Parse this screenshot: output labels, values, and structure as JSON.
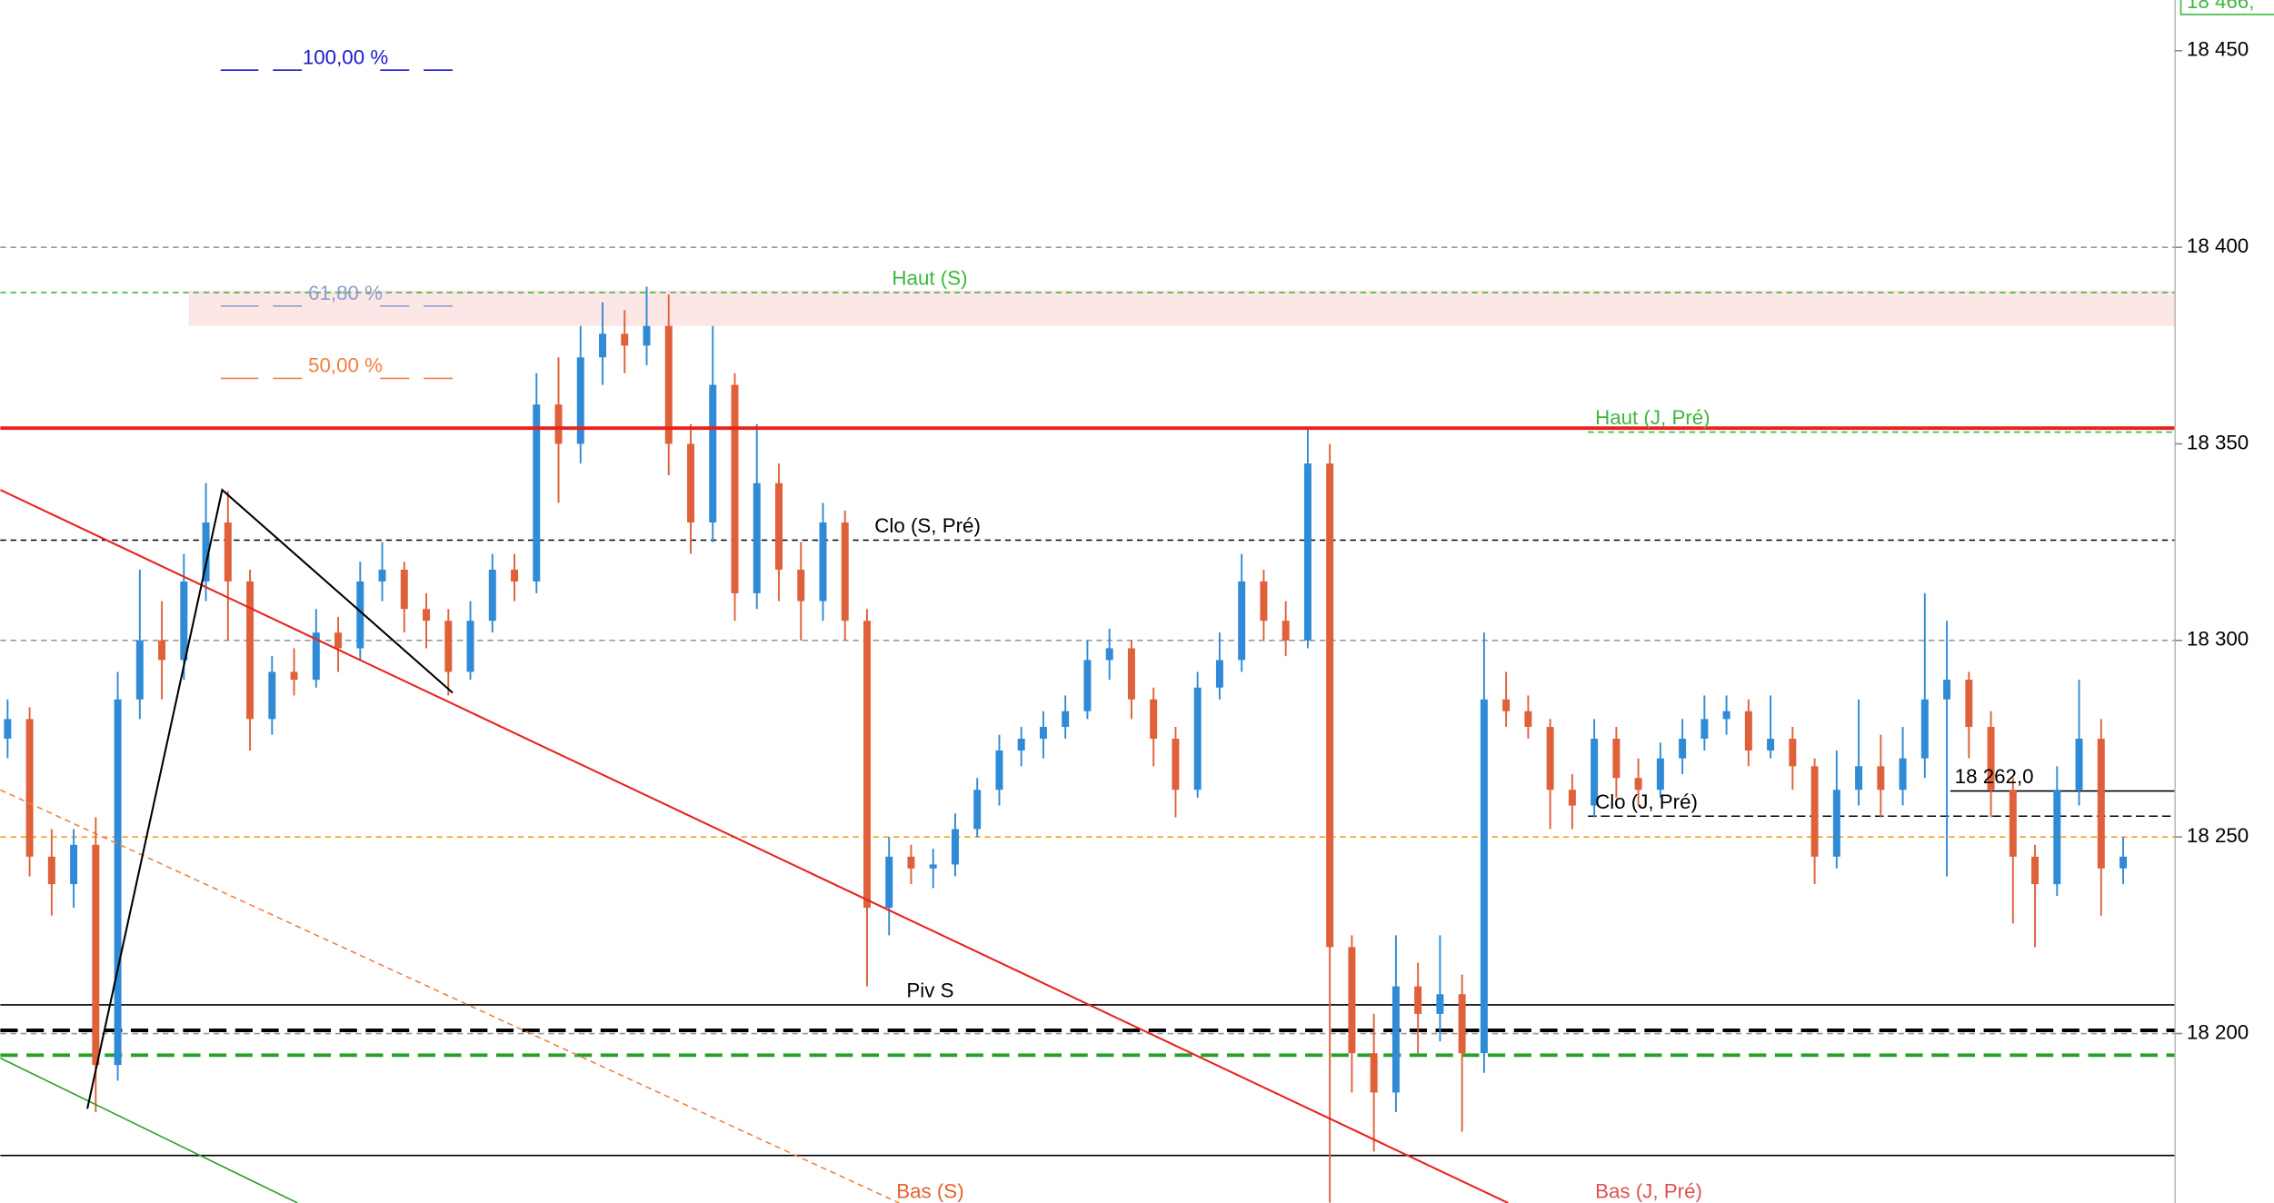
{
  "chart_data": {
    "type": "candlestick",
    "ylim": [
      18156.9,
      18462.9
    ],
    "yticks": [
      {
        "value": 18450,
        "label": "18 450"
      },
      {
        "value": 18400,
        "label": "18 400"
      },
      {
        "value": 18350,
        "label": "18 350"
      },
      {
        "value": 18300,
        "label": "18 300"
      },
      {
        "value": 18250,
        "label": "18 250"
      },
      {
        "value": 18200,
        "label": "18 200"
      }
    ],
    "gridlines": [
      18400,
      18300,
      18200
    ],
    "price_label": "18 466,",
    "up_color": "#2f8bd6",
    "down_color": "#e0603a",
    "open": [
      18275,
      18280,
      18245,
      18238,
      18248,
      18192,
      18285,
      18300,
      18295,
      18315,
      18330,
      18315,
      18280,
      18292,
      18290,
      18302,
      18298,
      18315,
      18318,
      18308,
      18305,
      18292,
      18305,
      18318,
      18315,
      18360,
      18350,
      18372,
      18378,
      18375,
      18380,
      18350,
      18330,
      18365,
      18312,
      18340,
      18318,
      18310,
      18330,
      18305,
      18232,
      18245,
      18242,
      18243,
      18252,
      18262,
      18272,
      18275,
      18278,
      18282,
      18295,
      18298,
      18285,
      18275,
      18262,
      18288,
      18295,
      18315,
      18305,
      18300,
      18345,
      18222,
      18195,
      18185,
      18212,
      18205,
      18210,
      18195,
      18285,
      18282,
      18278,
      18262,
      18258,
      18275,
      18265,
      18262,
      18270,
      18275,
      18280,
      18282,
      18272,
      18275,
      18268,
      18245,
      18262,
      18268,
      18262,
      18270,
      18285,
      18290,
      18278,
      18262,
      18245,
      18238,
      18262,
      18275,
      18242
    ],
    "high": [
      18285,
      18283,
      18252,
      18252,
      18255,
      18292,
      18318,
      18310,
      18322,
      18340,
      18338,
      18318,
      18296,
      18298,
      18308,
      18306,
      18320,
      18325,
      18320,
      18312,
      18308,
      18310,
      18322,
      18322,
      18368,
      18372,
      18380,
      18386,
      18384,
      18390,
      18388,
      18355,
      18380,
      18368,
      18355,
      18345,
      18325,
      18335,
      18333,
      18308,
      18250,
      18248,
      18247,
      18256,
      18265,
      18276,
      18278,
      18282,
      18286,
      18300,
      18303,
      18300,
      18288,
      18278,
      18292,
      18302,
      18322,
      18318,
      18310,
      18354,
      18350,
      18225,
      18205,
      18225,
      18218,
      18225,
      18215,
      18302,
      18292,
      18286,
      18280,
      18266,
      18280,
      18278,
      18270,
      18274,
      18280,
      18286,
      18286,
      18285,
      18286,
      18278,
      18270,
      18272,
      18285,
      18276,
      18278,
      18312,
      18305,
      18292,
      18282,
      18265,
      18248,
      18268,
      18290,
      18280,
      18250
    ],
    "low": [
      18270,
      18240,
      18230,
      18232,
      18180,
      18188,
      18280,
      18285,
      18290,
      18310,
      18300,
      18272,
      18276,
      18286,
      18288,
      18292,
      18295,
      18310,
      18302,
      18298,
      18286,
      18290,
      18302,
      18310,
      18312,
      18335,
      18345,
      18365,
      18368,
      18370,
      18342,
      18322,
      18325,
      18305,
      18308,
      18310,
      18300,
      18305,
      18300,
      18212,
      18225,
      18238,
      18237,
      18240,
      18250,
      18258,
      18268,
      18270,
      18275,
      18280,
      18290,
      18280,
      18268,
      18255,
      18260,
      18285,
      18292,
      18300,
      18296,
      18298,
      18157,
      18185,
      18170,
      18180,
      18195,
      18198,
      18175,
      18190,
      18278,
      18275,
      18252,
      18252,
      18255,
      18260,
      18258,
      18260,
      18266,
      18272,
      18276,
      18268,
      18270,
      18262,
      18238,
      18242,
      18258,
      18255,
      18258,
      18265,
      18240,
      18270,
      18255,
      18228,
      18222,
      18235,
      18258,
      18230,
      18238
    ],
    "close": [
      18280,
      18245,
      18238,
      18248,
      18192,
      18285,
      18300,
      18295,
      18315,
      18330,
      18315,
      18280,
      18292,
      18290,
      18302,
      18298,
      18315,
      18318,
      18308,
      18305,
      18292,
      18305,
      18318,
      18315,
      18360,
      18350,
      18372,
      18378,
      18375,
      18380,
      18350,
      18330,
      18365,
      18312,
      18340,
      18318,
      18310,
      18330,
      18305,
      18232,
      18245,
      18242,
      18243,
      18252,
      18262,
      18272,
      18275,
      18278,
      18282,
      18295,
      18298,
      18285,
      18275,
      18262,
      18288,
      18295,
      18315,
      18305,
      18300,
      18345,
      18222,
      18195,
      18185,
      18212,
      18205,
      18210,
      18195,
      18285,
      18282,
      18278,
      18262,
      18258,
      18275,
      18265,
      18262,
      18270,
      18275,
      18280,
      18282,
      18272,
      18275,
      18268,
      18245,
      18262,
      18268,
      18262,
      18270,
      18285,
      18290,
      18278,
      18262,
      18245,
      18238,
      18262,
      18275,
      18242,
      18245
    ],
    "zone": {
      "low": 18380,
      "high": 18389,
      "color": "#fde6e6"
    },
    "fib": [
      {
        "label": "100,00 %",
        "value": 18448,
        "color": "#1a1acc"
      },
      {
        "label": "61,80 %",
        "value": 18388,
        "color": "#8aa0d0"
      },
      {
        "label": "50,00 %",
        "value": 18369.6,
        "color": "#f08040"
      }
    ],
    "levels": [
      {
        "value": 18388.5,
        "color": "#3cb83c",
        "dash": "4 3",
        "width": 1,
        "label": "Haut (S)"
      },
      {
        "value": 18354,
        "color": "#e8221e",
        "width": 2.5
      },
      {
        "value": 18353,
        "color": "#3cb83c",
        "dash": "4 3",
        "width": 1,
        "label": "Haut (J, Pré)"
      },
      {
        "value": 18325.5,
        "color": "#000000",
        "dash": "4 3",
        "width": 1,
        "label": "Clo (S, Pré)"
      },
      {
        "value": 18250,
        "color": "#f0a020",
        "dash": "4 3",
        "width": 1
      },
      {
        "value": 18255.3,
        "color": "#000000",
        "dash": "6 3",
        "width": 1,
        "label": "Clo (J, Pré)"
      },
      {
        "value": 18261.7,
        "color": "#000000",
        "width": 1,
        "label": "18 262,0"
      },
      {
        "value": 18207.3,
        "color": "#000000",
        "width": 1,
        "label": "Piv S"
      },
      {
        "value": 18200.8,
        "color": "#000000",
        "dash": "12 6",
        "width": 2.5
      },
      {
        "value": 18194.5,
        "color": "#2aa02a",
        "dash": "12 6",
        "width": 2.5
      },
      {
        "value": 18169,
        "color": "#000000",
        "width": 1
      }
    ],
    "annotations": [
      {
        "text": "Bas (S)",
        "color": "#e8602a"
      },
      {
        "text": "Bas (J, Pré)",
        "color": "#e05050"
      }
    ]
  }
}
